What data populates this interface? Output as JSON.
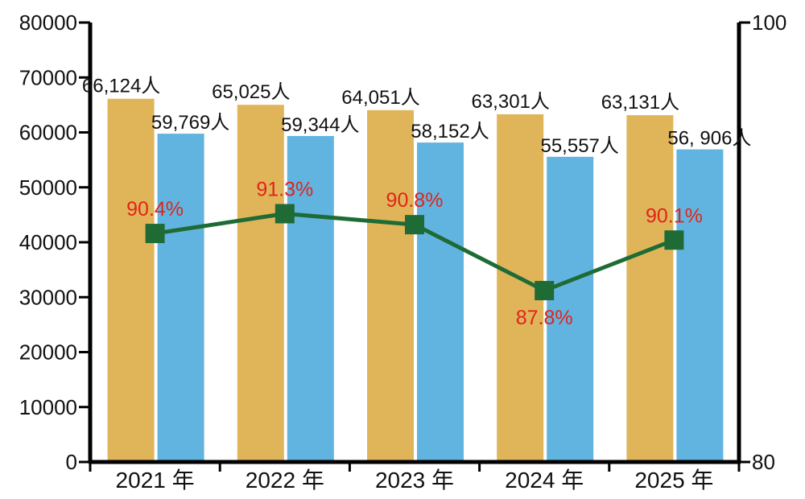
{
  "chart_data": {
    "type": "bar",
    "categories": [
      "2021 年",
      "2022 年",
      "2023 年",
      "2024 年",
      "2025 年"
    ],
    "series": [
      {
        "values": [
          66124,
          65025,
          64051,
          63301,
          63131
        ],
        "labels": [
          "66,124人",
          "65,025人",
          "64,051人",
          "63,301人",
          "63,131人"
        ],
        "color": "#e0b55a"
      },
      {
        "values": [
          59769,
          59344,
          58152,
          55557,
          56906
        ],
        "labels": [
          "59,769人",
          "59,344人",
          "58,152人",
          "55,557人",
          "56, 906人"
        ],
        "color": "#62b4e0"
      }
    ],
    "line_series": {
      "type": "line",
      "axis": "right",
      "values": [
        90.4,
        91.3,
        90.8,
        87.8,
        90.1
      ],
      "labels": [
        "90.4%",
        "91.3%",
        "90.8%",
        "87.8%",
        "90.1%"
      ],
      "color": "#1e6b35",
      "label_color": "#e2231a"
    },
    "y_left": {
      "ylim": [
        0,
        80000
      ],
      "ticks": [
        "0",
        "10000",
        "20000",
        "30000",
        "40000",
        "50000",
        "60000",
        "70000",
        "80000"
      ]
    },
    "y_right": {
      "ylim": [
        80,
        100
      ],
      "ticks": [
        "80",
        "100"
      ]
    },
    "grid": false,
    "legend": "none"
  }
}
